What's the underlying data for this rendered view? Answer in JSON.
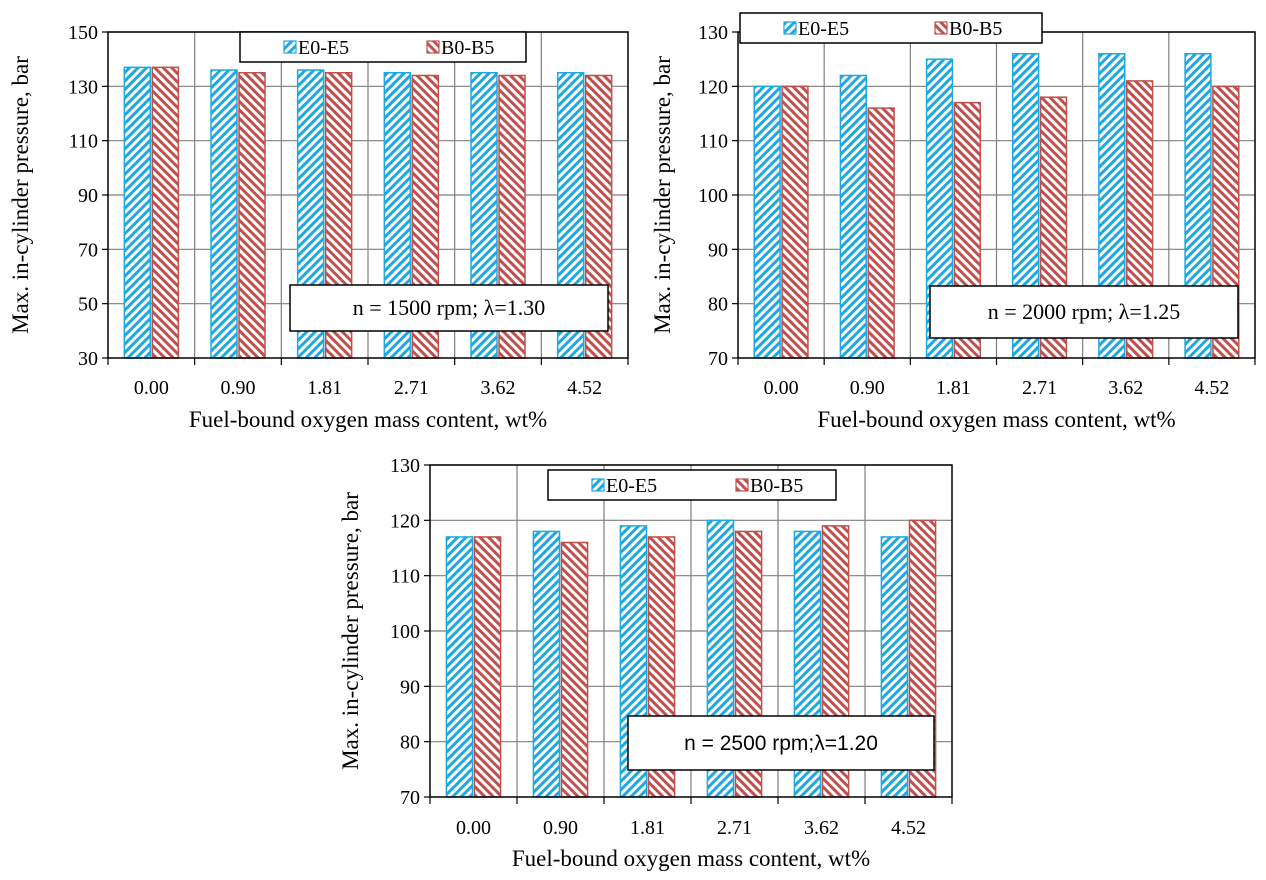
{
  "colors": {
    "E0-E5": "#1fa8e0",
    "B0-B5": "#c0504d",
    "grid": "#7f7f7f",
    "frame": "#000000"
  },
  "chart_data": [
    {
      "type": "bar",
      "categories": [
        "0.00",
        "0.90",
        "1.81",
        "2.71",
        "3.62",
        "4.52"
      ],
      "series": [
        {
          "name": "E0-E5",
          "values": [
            137,
            136,
            136,
            135,
            135,
            135
          ]
        },
        {
          "name": "B0-B5",
          "values": [
            137,
            135,
            135,
            134,
            134,
            134
          ]
        }
      ],
      "xlabel": "Fuel-bound oxygen mass content, wt%",
      "ylabel": "Max. in-cylinder pressure, bar",
      "ylim": [
        30,
        150
      ],
      "yticks": [
        30,
        50,
        70,
        90,
        110,
        130,
        150
      ],
      "annotation": "n = 1500 rpm; λ=1.30",
      "grid": true,
      "legend": "top"
    },
    {
      "type": "bar",
      "categories": [
        "0.00",
        "0.90",
        "1.81",
        "2.71",
        "3.62",
        "4.52"
      ],
      "series": [
        {
          "name": "E0-E5",
          "values": [
            120,
            122,
            125,
            126,
            126,
            126
          ]
        },
        {
          "name": "B0-B5",
          "values": [
            120,
            116,
            117,
            118,
            121,
            120
          ]
        }
      ],
      "xlabel": "Fuel-bound oxygen mass content, wt%",
      "ylabel": "Max. in-cylinder pressure, bar",
      "ylim": [
        70,
        130
      ],
      "yticks": [
        70,
        80,
        90,
        100,
        110,
        120,
        130
      ],
      "annotation": "n = 2000 rpm; λ=1.25",
      "grid": true,
      "legend": "top"
    },
    {
      "type": "bar",
      "categories": [
        "0.00",
        "0.90",
        "1.81",
        "2.71",
        "3.62",
        "4.52"
      ],
      "series": [
        {
          "name": "E0-E5",
          "values": [
            117,
            118,
            119,
            120,
            118,
            117
          ]
        },
        {
          "name": "B0-B5",
          "values": [
            117,
            116,
            117,
            118,
            119,
            120
          ]
        }
      ],
      "xlabel": "Fuel-bound oxygen mass content, wt%",
      "ylabel": "Max. in-cylinder pressure, bar",
      "ylim": [
        70,
        130
      ],
      "yticks": [
        70,
        80,
        90,
        100,
        110,
        120,
        130
      ],
      "annotation": "n = 2500 rpm;λ=1.20",
      "grid": true,
      "legend": "top"
    }
  ]
}
